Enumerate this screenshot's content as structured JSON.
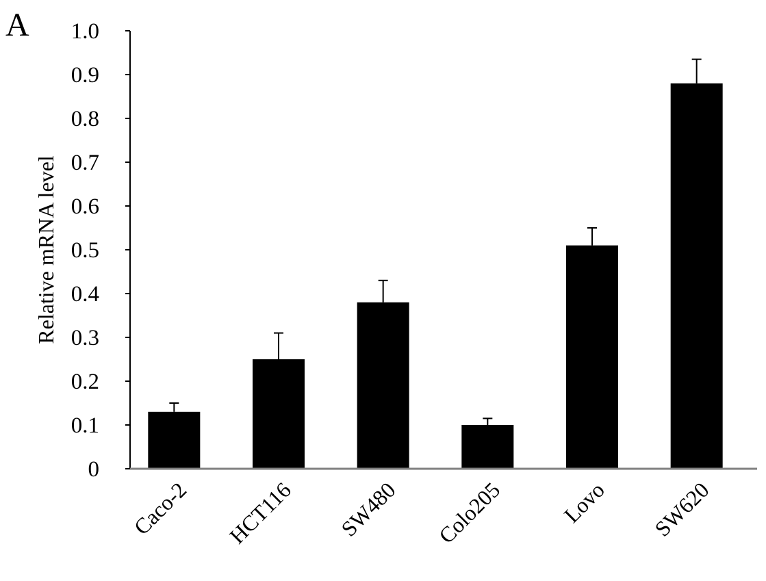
{
  "panel_label": "A",
  "chart_data": {
    "type": "bar",
    "categories": [
      "Caco-2",
      "HCT116",
      "SW480",
      "Colo205",
      "Lovo",
      "SW620"
    ],
    "values": [
      0.13,
      0.25,
      0.38,
      0.1,
      0.51,
      0.88
    ],
    "errors": [
      0.02,
      0.06,
      0.05,
      0.015,
      0.04,
      0.055
    ],
    "title": "",
    "xlabel": "",
    "ylabel": "Relative  mRNA level",
    "ylim": [
      0,
      1.0
    ],
    "yticks": [
      "0",
      "0.1",
      "0.2",
      "0.3",
      "0.4",
      "0.5",
      "0.6",
      "0.7",
      "0.8",
      "0.9",
      "1.0"
    ],
    "bar_color": "#000000",
    "x_axis_color": "#808080",
    "grid": false,
    "legend": "none"
  }
}
